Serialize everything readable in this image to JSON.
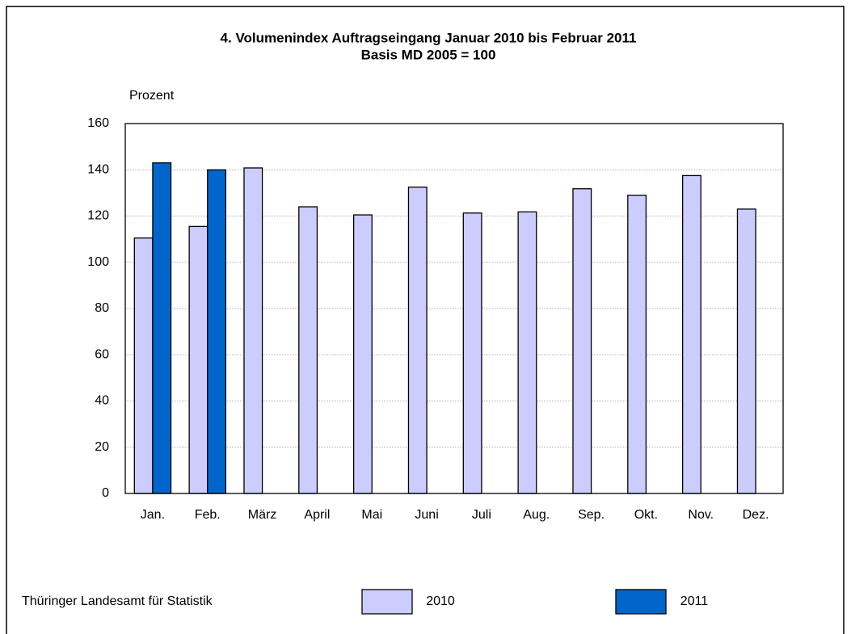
{
  "chart_data": {
    "type": "bar",
    "title": "4. Volumenindex Auftragseingang Januar 2010 bis Februar 2011",
    "subtitle": "Basis MD 2005 = 100",
    "y_axis_label": "Prozent",
    "source": "Thüringer Landesamt für Statistik",
    "categories": [
      "Jan.",
      "Feb.",
      "März",
      "April",
      "Mai",
      "Juni",
      "Juli",
      "Aug.",
      "Sep.",
      "Okt.",
      "Nov.",
      "Dez."
    ],
    "series": [
      {
        "name": "2010",
        "color": "#ccccff",
        "values": [
          110.5,
          115.5,
          140.8,
          124,
          120.5,
          132.5,
          121.3,
          121.8,
          131.8,
          129,
          137.5,
          123
        ]
      },
      {
        "name": "2011",
        "color": "#0066cc",
        "values": [
          143,
          140,
          null,
          null,
          null,
          null,
          null,
          null,
          null,
          null,
          null,
          null
        ]
      }
    ],
    "ylim": [
      0,
      160
    ],
    "yticks": [
      0,
      20,
      40,
      60,
      80,
      100,
      120,
      140,
      160
    ],
    "grid": true,
    "legend": "bottom"
  }
}
